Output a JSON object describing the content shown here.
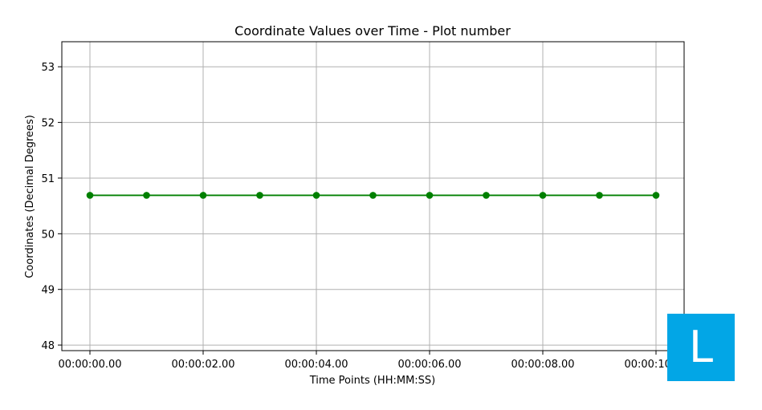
{
  "chart_data": {
    "type": "line",
    "title": "Coordinate Values over Time - Plot number",
    "xlabel": "Time Points (HH:MM:SS)",
    "ylabel": "Coordinates (Decimal Degrees)",
    "x": [
      "00:00:00.00",
      "00:00:01.00",
      "00:00:02.00",
      "00:00:03.00",
      "00:00:04.00",
      "00:00:05.00",
      "00:00:06.00",
      "00:00:07.00",
      "00:00:08.00",
      "00:00:09.00",
      "00:00:10.00"
    ],
    "x_tick_labels": [
      "00:00:00.00",
      "00:00:02.00",
      "00:00:04.00",
      "00:00:06.00",
      "00:00:08.00",
      "00:00:10.00"
    ],
    "y_ticks": [
      48,
      49,
      50,
      51,
      52,
      53
    ],
    "ylim": [
      47.9,
      53.45
    ],
    "series": [
      {
        "values": [
          50.69,
          50.69,
          50.69,
          50.69,
          50.69,
          50.69,
          50.69,
          50.69,
          50.69,
          50.69,
          50.69
        ],
        "color": "#008000",
        "marker": "circle"
      }
    ],
    "grid": true,
    "legend": "none"
  },
  "badge": {
    "letter": "L",
    "color": "#02a6e6"
  }
}
